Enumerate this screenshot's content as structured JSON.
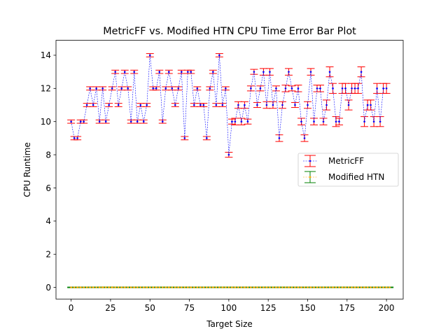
{
  "chart_data": {
    "type": "line",
    "title": "MetricFF vs. Modified HTN CPU Time Error Bar Plot",
    "xlabel": "Target Size",
    "ylabel": "CPU Runtime",
    "xlim": [
      -9.6,
      210.6
    ],
    "ylim": [
      -0.7,
      14.9
    ],
    "xticks": [
      0,
      25,
      50,
      75,
      100,
      125,
      150,
      175,
      200
    ],
    "yticks": [
      0,
      2,
      4,
      6,
      8,
      10,
      12,
      14
    ],
    "grid": false,
    "legend": "center-right",
    "series": [
      {
        "name": "MetricFF",
        "color": "#0000ff",
        "error_color": "#ff0000",
        "x": [
          0,
          2,
          4,
          6,
          8,
          10,
          12,
          14,
          16,
          18,
          20,
          22,
          24,
          26,
          28,
          30,
          32,
          34,
          36,
          38,
          40,
          42,
          44,
          46,
          48,
          50,
          52,
          54,
          56,
          58,
          60,
          62,
          64,
          66,
          68,
          70,
          72,
          74,
          76,
          78,
          80,
          82,
          84,
          86,
          88,
          90,
          92,
          94,
          96,
          98,
          100,
          102,
          104,
          106,
          108,
          110,
          112,
          114,
          116,
          118,
          120,
          122,
          124,
          126,
          128,
          130,
          132,
          134,
          136,
          138,
          140,
          142,
          144,
          146,
          148,
          150,
          152,
          154,
          156,
          158,
          160,
          162,
          164,
          166,
          168,
          170,
          172,
          174,
          176,
          178,
          180,
          182,
          184,
          186,
          188,
          190,
          192,
          194,
          196,
          198,
          200
        ],
        "y": [
          10,
          9,
          9,
          10,
          10,
          11,
          12,
          11,
          12,
          10,
          12,
          10,
          11,
          12,
          13,
          11,
          12,
          13,
          12,
          10,
          13,
          10,
          11,
          10,
          11,
          14,
          12,
          12,
          13,
          10,
          12,
          13,
          12,
          11,
          12,
          13,
          9,
          13,
          13,
          11,
          12,
          11,
          11,
          9,
          12,
          13,
          11,
          14,
          11,
          12,
          8,
          10,
          10,
          11,
          10,
          11,
          10,
          12,
          13,
          11,
          12,
          13,
          11,
          13,
          11,
          12,
          9,
          11,
          12,
          13,
          12,
          11,
          12,
          10,
          9,
          11,
          13,
          10,
          12,
          12,
          10,
          11,
          13,
          12,
          10,
          10,
          12,
          12,
          11,
          12,
          12,
          12,
          13,
          10,
          11,
          11,
          10,
          12,
          10,
          12,
          12
        ],
        "err": [
          0.1,
          0.1,
          0.1,
          0.1,
          0.1,
          0.1,
          0.1,
          0.1,
          0.1,
          0.1,
          0.1,
          0.1,
          0.1,
          0.1,
          0.1,
          0.1,
          0.1,
          0.1,
          0.1,
          0.1,
          0.1,
          0.1,
          0.1,
          0.1,
          0.1,
          0.1,
          0.1,
          0.1,
          0.1,
          0.1,
          0.1,
          0.1,
          0.1,
          0.1,
          0.1,
          0.1,
          0.1,
          0.1,
          0.1,
          0.1,
          0.1,
          0.1,
          0.1,
          0.1,
          0.1,
          0.1,
          0.1,
          0.1,
          0.1,
          0.1,
          0.15,
          0.15,
          0.2,
          0.2,
          0.2,
          0.2,
          0.15,
          0.15,
          0.15,
          0.15,
          0.15,
          0.2,
          0.2,
          0.2,
          0.2,
          0.15,
          0.2,
          0.2,
          0.2,
          0.2,
          0.15,
          0.15,
          0.2,
          0.2,
          0.2,
          0.2,
          0.2,
          0.2,
          0.2,
          0.2,
          0.2,
          0.3,
          0.3,
          0.3,
          0.3,
          0.2,
          0.3,
          0.3,
          0.3,
          0.3,
          0.3,
          0.3,
          0.3,
          0.3,
          0.3,
          0.3,
          0.3,
          0.3,
          0.3,
          0.3,
          0.3
        ]
      },
      {
        "name": "Modified HTN",
        "color": "#ffa500",
        "error_color": "#008000",
        "x": [
          0,
          2,
          4,
          6,
          8,
          10,
          12,
          14,
          16,
          18,
          20,
          22,
          24,
          26,
          28,
          30,
          32,
          34,
          36,
          38,
          40,
          42,
          44,
          46,
          48,
          50,
          52,
          54,
          56,
          58,
          60,
          62,
          64,
          66,
          68,
          70,
          72,
          74,
          76,
          78,
          80,
          82,
          84,
          86,
          88,
          90,
          92,
          94,
          96,
          98,
          100,
          102,
          104,
          106,
          108,
          110,
          112,
          114,
          116,
          118,
          120,
          122,
          124,
          126,
          128,
          130,
          132,
          134,
          136,
          138,
          140,
          142,
          144,
          146,
          148,
          150,
          152,
          154,
          156,
          158,
          160,
          162,
          164,
          166,
          168,
          170,
          172,
          174,
          176,
          178,
          180,
          182,
          184,
          186,
          188,
          190,
          192,
          194,
          196,
          198,
          200,
          202
        ],
        "y": [
          0.003,
          0.003,
          0.003,
          0.004,
          0.004,
          0.004,
          0.005,
          0.005,
          0.005,
          0.006,
          0.006,
          0.006,
          0.006,
          0.006,
          0.005,
          0.005,
          0.005,
          0.005,
          0.005,
          0.005,
          0.005,
          0.005,
          0.005,
          0.005,
          0.005,
          0.005,
          0.005,
          0.005,
          0.005,
          0.005,
          0.005,
          0.005,
          0.005,
          0.005,
          0.005,
          0.005,
          0.005,
          0.005,
          0.005,
          0.005,
          0.005,
          0.005,
          0.005,
          0.005,
          0.005,
          0.005,
          0.005,
          0.005,
          0.005,
          0.005,
          0.005,
          0.005,
          0.005,
          0.005,
          0.005,
          0.005,
          0.005,
          0.005,
          0.005,
          0.005,
          0.005,
          0.005,
          0.005,
          0.005,
          0.005,
          0.005,
          0.005,
          0.005,
          0.005,
          0.005,
          0.005,
          0.005,
          0.005,
          0.005,
          0.005,
          0.005,
          0.005,
          0.005,
          0.005,
          0.005,
          0.005,
          0.005,
          0.005,
          0.005,
          0.005,
          0.005,
          0.005,
          0.005,
          0.005,
          0.005,
          0.005,
          0.005,
          0.005,
          0.005,
          0.005,
          0.005,
          0.005,
          0.005,
          0.005,
          0.005,
          0.005,
          0.005
        ],
        "err": 0.02
      }
    ]
  }
}
